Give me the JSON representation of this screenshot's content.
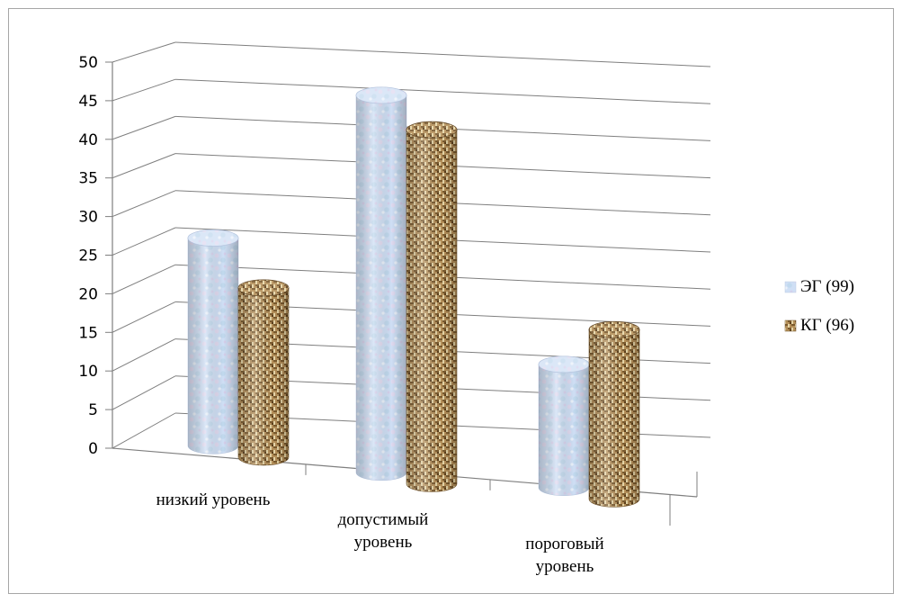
{
  "chart_data": {
    "type": "bar",
    "categories": [
      [
        "низкий уровень"
      ],
      [
        "допустимый",
        "уровень"
      ],
      [
        "пороговый",
        "уровень"
      ]
    ],
    "series": [
      {
        "name": "ЭГ  (99)",
        "values": [
          27,
          49,
          16
        ],
        "color": "#c8daf3"
      },
      {
        "name": "КГ (96)",
        "values": [
          22,
          46,
          22
        ],
        "color": "#b08a50"
      }
    ],
    "ylim": [
      0,
      50
    ],
    "yticks": [
      0,
      5,
      10,
      15,
      20,
      25,
      30,
      35,
      40,
      45,
      50
    ],
    "grid": true,
    "legend_position": "right",
    "style": "3d-cylinder"
  }
}
